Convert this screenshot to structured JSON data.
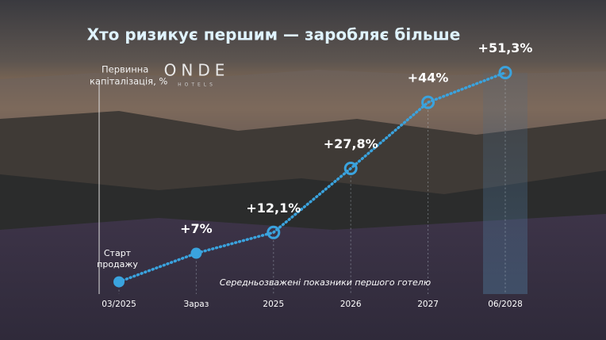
{
  "chart_data": {
    "type": "line",
    "title": "Хто ризикує першим — заробляє більше",
    "y_label": [
      "Первинна",
      "капіталізація, %"
    ],
    "logo": {
      "name": "ONDE",
      "sub": "HOTELS"
    },
    "annotation": "Середньозважені показники першого готелю",
    "start_label": [
      "Старт",
      "продажу"
    ],
    "categories": [
      "03/2025",
      "Зараз",
      "2025",
      "2026",
      "2027",
      "06/2028"
    ],
    "values": [
      0,
      7,
      12.1,
      27.8,
      44,
      51.3
    ],
    "value_labels": [
      null,
      "+7%",
      "+12,1%",
      "+27,8%",
      "+44%",
      "+51,3%"
    ],
    "color": "#3aa3de",
    "ylim": [
      -3,
      52
    ]
  }
}
